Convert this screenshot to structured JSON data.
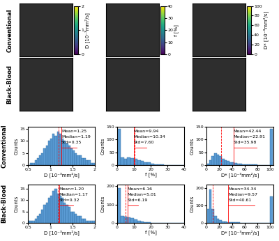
{
  "row_labels": [
    "Conventional",
    "Black-Blood"
  ],
  "maps": [
    {
      "label": "D [10⁻³mm²/s]",
      "colorbar_range": [
        0,
        2
      ],
      "colorbar_ticks": [
        0,
        1,
        2
      ]
    },
    {
      "label": "f [%]",
      "colorbar_range": [
        0,
        40
      ],
      "colorbar_ticks": [
        0,
        10,
        20,
        30,
        40
      ]
    },
    {
      "label": "D* [10⁻³mm²/s]",
      "colorbar_range": [
        0,
        100
      ],
      "colorbar_ticks": [
        0,
        20,
        40,
        60,
        80,
        100
      ]
    }
  ],
  "chart_data": [
    {
      "type": "histogram",
      "xlabel": "D [10⁻³mm²/s]",
      "ylabel": "Counts",
      "color": "#5a9bd4",
      "bins": [
        0.5,
        0.55,
        0.6,
        0.65,
        0.7,
        0.75,
        0.8,
        0.85,
        0.9,
        0.95,
        1.0,
        1.05,
        1.1,
        1.15,
        1.2,
        1.25,
        1.3,
        1.35,
        1.4,
        1.45,
        1.5,
        1.55,
        1.6,
        1.65,
        1.7,
        1.75,
        1.8,
        1.85,
        1.9,
        1.95,
        2.0
      ],
      "counts": [
        0,
        1,
        1,
        2,
        3,
        4,
        5,
        7,
        8,
        10,
        11,
        13,
        12,
        14,
        13,
        11,
        10,
        9,
        8,
        7,
        6,
        5,
        4,
        4,
        3,
        3,
        2,
        2,
        1,
        1
      ],
      "xlim": [
        0.5,
        2.0
      ],
      "xticks": [
        0.5,
        1,
        1.5,
        2
      ],
      "ylim": [
        0,
        16
      ],
      "yticks": [
        0,
        5,
        10,
        15
      ],
      "mean": 1.25,
      "median": 1.19,
      "std": 0.35,
      "annotations": [
        "Mean=1.25",
        "Median=1.19",
        "Std=0.35"
      ]
    },
    {
      "type": "histogram",
      "xlabel": "f [%]",
      "ylabel": "Counts",
      "color": "#5a9bd4",
      "bins": [
        0,
        2,
        4,
        6,
        8,
        10,
        12,
        14,
        16,
        18,
        20,
        22,
        24,
        26,
        28,
        30,
        32,
        34,
        36,
        38,
        40
      ],
      "counts": [
        140,
        30,
        25,
        30,
        28,
        25,
        20,
        15,
        12,
        10,
        6,
        4,
        3,
        2,
        1,
        1,
        1,
        0,
        0,
        0
      ],
      "xlim": [
        0,
        40
      ],
      "xticks": [
        0,
        10,
        20,
        30,
        40
      ],
      "ylim": [
        0,
        150
      ],
      "yticks": [
        0,
        50,
        100,
        150
      ],
      "mean": 9.94,
      "median": 10.34,
      "std": 7.6,
      "annotations": [
        "Mean=9.94",
        "Median=10.34",
        "Std=7.60"
      ]
    },
    {
      "type": "histogram",
      "xlabel": "D* [10⁻³mm²/s]",
      "ylabel": "Counts",
      "color": "#5a9bd4",
      "bins": [
        0,
        4,
        8,
        12,
        16,
        20,
        24,
        28,
        32,
        36,
        40,
        44,
        48,
        52,
        56,
        60,
        64,
        68,
        72,
        76,
        80,
        84,
        88,
        92,
        96,
        100,
        104
      ],
      "counts": [
        5,
        20,
        35,
        45,
        40,
        35,
        25,
        20,
        15,
        12,
        10,
        8,
        6,
        5,
        4,
        3,
        3,
        2,
        2,
        2,
        1,
        1,
        1,
        1,
        1,
        140
      ],
      "xlim": [
        0,
        105
      ],
      "xticks": [
        0,
        20,
        40,
        60,
        80,
        100
      ],
      "ylim": [
        0,
        150
      ],
      "yticks": [
        0,
        50,
        100,
        150
      ],
      "mean": 42.44,
      "median": 22.91,
      "std": 35.98,
      "annotations": [
        "Mean=42.44",
        "Median=22.91",
        "Std=35.98"
      ]
    },
    {
      "type": "histogram",
      "xlabel": "D [10⁻³mm²/s]",
      "ylabel": "Counts",
      "color": "#5a9bd4",
      "bins": [
        0.5,
        0.55,
        0.6,
        0.65,
        0.7,
        0.75,
        0.8,
        0.85,
        0.9,
        0.95,
        1.0,
        1.05,
        1.1,
        1.15,
        1.2,
        1.25,
        1.3,
        1.35,
        1.4,
        1.45,
        1.5,
        1.55,
        1.6,
        1.65,
        1.7,
        1.75,
        1.8,
        1.85,
        1.9,
        1.95,
        2.0
      ],
      "counts": [
        1,
        1,
        1,
        2,
        3,
        4,
        6,
        8,
        9,
        11,
        12,
        14,
        15,
        13,
        12,
        11,
        9,
        8,
        7,
        5,
        5,
        4,
        3,
        3,
        2,
        2,
        1,
        1,
        1,
        1
      ],
      "xlim": [
        0.5,
        2.0
      ],
      "xticks": [
        0.5,
        1,
        1.5,
        2
      ],
      "ylim": [
        0,
        17
      ],
      "yticks": [
        0,
        5,
        10,
        15
      ],
      "mean": 1.2,
      "median": 1.17,
      "std": 0.32,
      "annotations": [
        "Mean=1.20",
        "Median=1.17",
        "Std=0.32"
      ]
    },
    {
      "type": "histogram",
      "xlabel": "f [%]",
      "ylabel": "Counts",
      "color": "#5a9bd4",
      "bins": [
        0,
        2,
        4,
        6,
        8,
        10,
        12,
        14,
        16,
        18,
        20,
        22,
        24,
        26,
        28,
        30,
        32,
        34,
        36,
        38,
        40
      ],
      "counts": [
        190,
        40,
        35,
        30,
        25,
        20,
        12,
        8,
        5,
        3,
        2,
        1,
        1,
        0,
        0,
        0,
        0,
        0,
        0,
        0
      ],
      "xlim": [
        0,
        40
      ],
      "xticks": [
        0,
        10,
        20,
        30,
        40
      ],
      "ylim": [
        0,
        210
      ],
      "yticks": [
        0,
        100,
        200
      ],
      "mean": 6.16,
      "median": 5.01,
      "std": 6.19,
      "annotations": [
        "Mean=6.16",
        "Median=5.01",
        "Std=6.19"
      ]
    },
    {
      "type": "histogram",
      "xlabel": "D* [10⁻³mm²/s]",
      "ylabel": "Counts",
      "color": "#5a9bd4",
      "bins": [
        0,
        4,
        8,
        12,
        16,
        20,
        24,
        28,
        32,
        36,
        40,
        44,
        48,
        52,
        56,
        60,
        64,
        68,
        72,
        76,
        80,
        84,
        88,
        92,
        96,
        100,
        104
      ],
      "counts": [
        80,
        190,
        80,
        40,
        25,
        15,
        10,
        8,
        6,
        5,
        4,
        3,
        3,
        2,
        2,
        1,
        1,
        1,
        1,
        1,
        1,
        1,
        1,
        1,
        1,
        150
      ],
      "xlim": [
        0,
        105
      ],
      "xticks": [
        0,
        20,
        40,
        60,
        80,
        100
      ],
      "ylim": [
        0,
        220
      ],
      "yticks": [
        0,
        100,
        200
      ],
      "mean": 34.34,
      "median": 9.57,
      "std": 40.61,
      "annotations": [
        "Mean=34.34",
        "Median=9.57",
        "Std=40.61"
      ]
    }
  ]
}
